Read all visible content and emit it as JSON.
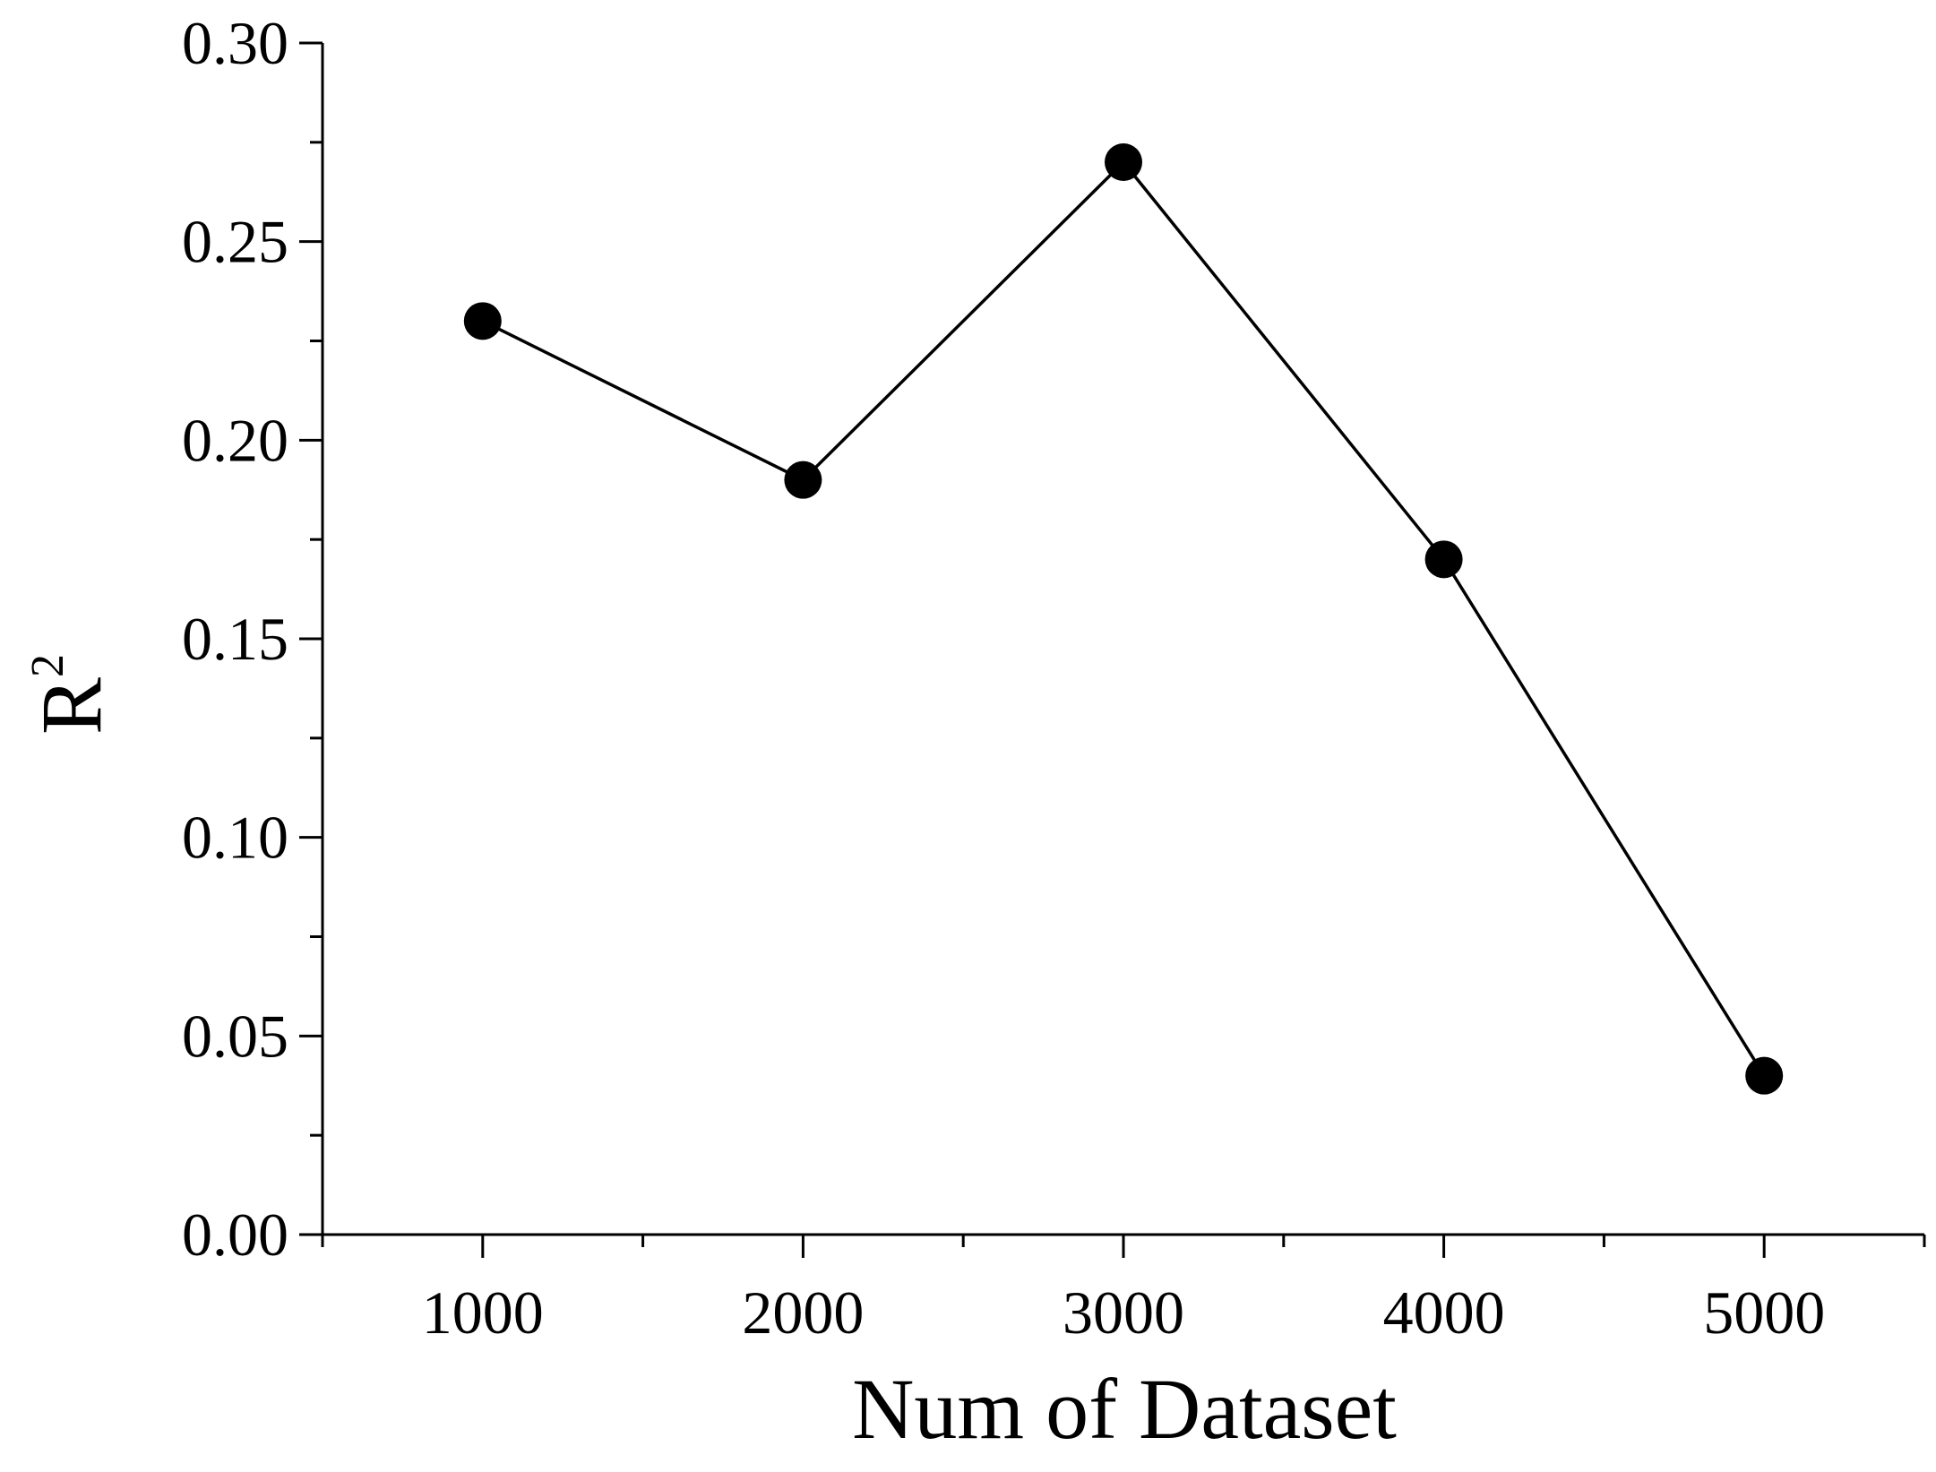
{
  "chart_data": {
    "type": "line",
    "title": "",
    "xlabel": "Num of Dataset",
    "ylabel": "R",
    "ylabel_superscript": "2",
    "x": [
      1000,
      2000,
      3000,
      4000,
      5000
    ],
    "series": [
      {
        "values": [
          0.23,
          0.19,
          0.27,
          0.17,
          0.04
        ],
        "color": "#000000",
        "marker": "circle-filled"
      }
    ],
    "xlim": [
      500,
      5500
    ],
    "ylim": [
      0,
      0.3
    ],
    "x_ticks": [
      1000,
      2000,
      3000,
      4000,
      5000
    ],
    "x_tick_labels": [
      "1000",
      "2000",
      "3000",
      "4000",
      "5000"
    ],
    "x_minor_ticks": [
      500,
      1500,
      2500,
      3500,
      4500,
      5500
    ],
    "y_ticks": [
      0,
      0.05,
      0.1,
      0.15,
      0.2,
      0.25,
      0.3
    ],
    "y_tick_labels": [
      "0.00",
      "0.05",
      "0.10",
      "0.15",
      "0.20",
      "0.25",
      "0.30"
    ],
    "y_minor_ticks": [
      0.025,
      0.075,
      0.125,
      0.175,
      0.225,
      0.275
    ],
    "grid": false,
    "legend": "none"
  }
}
